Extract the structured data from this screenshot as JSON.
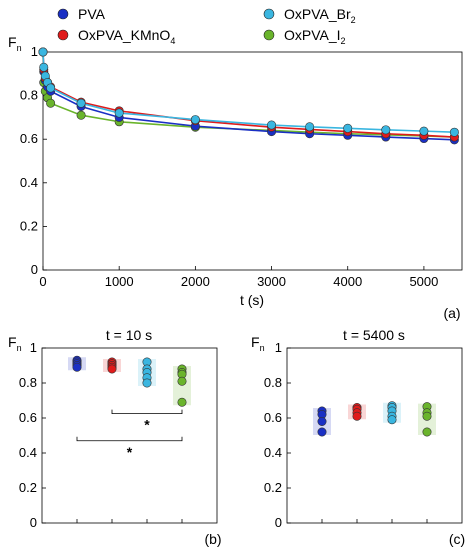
{
  "legend": [
    {
      "name": "PVA",
      "color": "#1a2fc4"
    },
    {
      "name": "OxPVA_KMnO4",
      "color": "#e01b1b",
      "base": "OxPVA_KMnO",
      "sub": "4"
    },
    {
      "name": "OxPVA_Br2",
      "color": "#3ab6e0",
      "base": "OxPVA_Br",
      "sub": "2"
    },
    {
      "name": "OxPVA_I2",
      "color": "#6ab42c",
      "base": "OxPVA_I",
      "sub": "2"
    }
  ],
  "chart_data": [
    {
      "type": "line",
      "panel": "(a)",
      "ylabel": "F",
      "ylabel_sub": "n",
      "xlabel": "t (s)",
      "xlim": [
        0,
        5500
      ],
      "ylim": [
        0,
        1
      ],
      "xticks": [
        "0",
        "1000",
        "2000",
        "3000",
        "4000",
        "5000"
      ],
      "yticks": [
        "0",
        "0.2",
        "0.4",
        "0.6",
        "0.8",
        "1"
      ],
      "x": [
        0,
        10,
        30,
        60,
        100,
        500,
        1000,
        2000,
        3000,
        3500,
        4000,
        4500,
        5000,
        5400
      ],
      "series": [
        {
          "name": "PVA",
          "values": [
            1.0,
            0.91,
            0.87,
            0.84,
            0.82,
            0.75,
            0.7,
            0.66,
            0.635,
            0.625,
            0.618,
            0.61,
            0.603,
            0.597
          ]
        },
        {
          "name": "OxPVA_KMnO4",
          "values": [
            1.0,
            0.92,
            0.88,
            0.86,
            0.84,
            0.77,
            0.73,
            0.685,
            0.655,
            0.645,
            0.635,
            0.625,
            0.618,
            0.61
          ]
        },
        {
          "name": "OxPVA_Br2",
          "values": [
            1.0,
            0.93,
            0.89,
            0.86,
            0.835,
            0.765,
            0.72,
            0.69,
            0.665,
            0.657,
            0.65,
            0.643,
            0.637,
            0.632
          ]
        },
        {
          "name": "OxPVA_I2",
          "values": [
            1.0,
            0.86,
            0.82,
            0.79,
            0.765,
            0.71,
            0.68,
            0.655,
            0.64,
            0.632,
            0.625,
            0.62,
            0.615,
            0.61
          ]
        }
      ]
    },
    {
      "type": "scatter",
      "panel": "(b)",
      "title": "t = 10 s",
      "ylabel": "F",
      "ylabel_sub": "n",
      "ylim": [
        0,
        1
      ],
      "yticks": [
        "0",
        "0.2",
        "0.4",
        "0.6",
        "0.8",
        "1"
      ],
      "groups": [
        {
          "name": "PVA",
          "values": [
            0.93,
            0.92,
            0.91,
            0.9,
            0.89
          ]
        },
        {
          "name": "OxPVA_KMnO4",
          "values": [
            0.92,
            0.91,
            0.9,
            0.89,
            0.88
          ]
        },
        {
          "name": "OxPVA_Br2",
          "values": [
            0.92,
            0.88,
            0.86,
            0.83,
            0.8
          ]
        },
        {
          "name": "OxPVA_I2",
          "values": [
            0.88,
            0.86,
            0.85,
            0.81,
            0.69
          ]
        }
      ],
      "annotations": [
        {
          "text": "*",
          "from": 1,
          "to": 3,
          "y": 0.625
        },
        {
          "text": "*",
          "from": 0,
          "to": 3,
          "y": 0.47
        }
      ]
    },
    {
      "type": "scatter",
      "panel": "(c)",
      "title": "t = 5400 s",
      "ylabel": "F",
      "ylabel_sub": "n",
      "ylim": [
        0,
        1
      ],
      "yticks": [
        "0",
        "0.2",
        "0.4",
        "0.6",
        "0.8",
        "1"
      ],
      "groups": [
        {
          "name": "PVA",
          "values": [
            0.64,
            0.62,
            0.58,
            0.52
          ]
        },
        {
          "name": "OxPVA_KMnO4",
          "values": [
            0.66,
            0.65,
            0.63,
            0.61
          ]
        },
        {
          "name": "OxPVA_Br2",
          "values": [
            0.67,
            0.66,
            0.64,
            0.61,
            0.59
          ]
        },
        {
          "name": "OxPVA_I2",
          "values": [
            0.665,
            0.63,
            0.61,
            0.52
          ]
        }
      ],
      "annotations": []
    }
  ]
}
